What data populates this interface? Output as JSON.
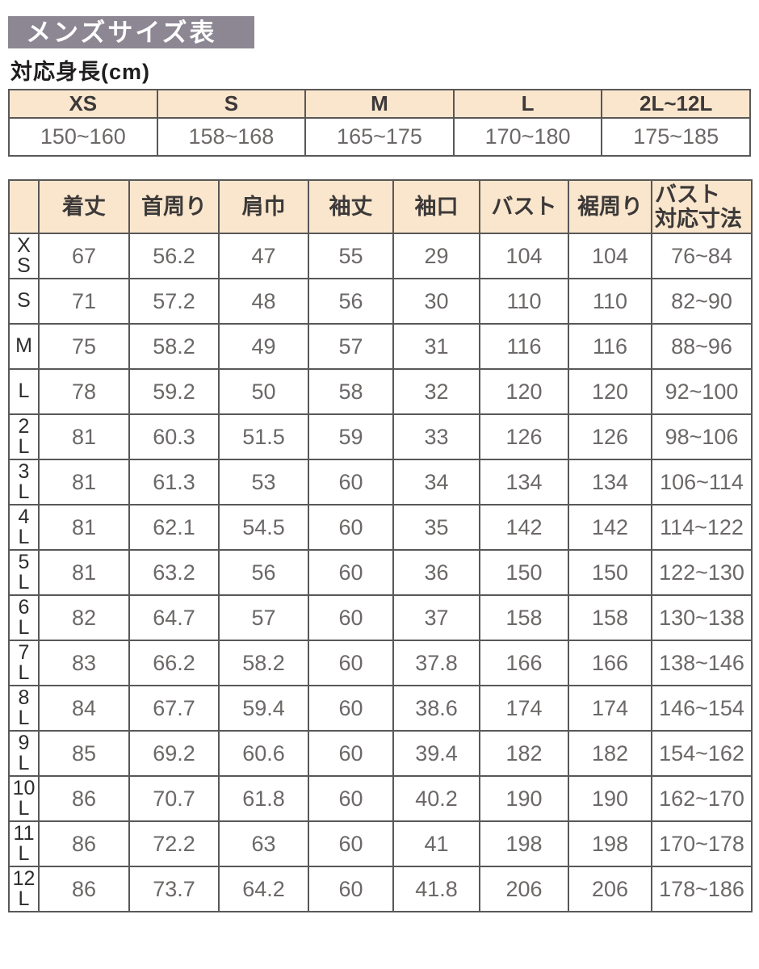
{
  "title": "メンズサイズ表",
  "subtitle": "対応身長(cm)",
  "colors": {
    "title_bar_bg": "#8c8793",
    "title_text": "#ffffff",
    "table_header_bg": "#f9e6cd",
    "table_border": "#595757",
    "header_text": "#3c3938",
    "value_text": "#6b6867"
  },
  "height_table": {
    "columns": [
      "XS",
      "S",
      "M",
      "L",
      "2L~12L"
    ],
    "values": [
      "150~160",
      "158~168",
      "165~175",
      "170~180",
      "175~185"
    ]
  },
  "size_table": {
    "corner_label": "",
    "columns": [
      "着丈",
      "首周り",
      "肩巾",
      "袖丈",
      "袖口",
      "バスト",
      "裾周り",
      "バスト\n対応寸法"
    ],
    "rows": [
      {
        "size": "X\nS",
        "values": [
          "67",
          "56.2",
          "47",
          "55",
          "29",
          "104",
          "104",
          "76~84"
        ]
      },
      {
        "size": "S",
        "values": [
          "71",
          "57.2",
          "48",
          "56",
          "30",
          "110",
          "110",
          "82~90"
        ]
      },
      {
        "size": "M",
        "values": [
          "75",
          "58.2",
          "49",
          "57",
          "31",
          "116",
          "116",
          "88~96"
        ]
      },
      {
        "size": "L",
        "values": [
          "78",
          "59.2",
          "50",
          "58",
          "32",
          "120",
          "120",
          "92~100"
        ]
      },
      {
        "size": "2\nL",
        "values": [
          "81",
          "60.3",
          "51.5",
          "59",
          "33",
          "126",
          "126",
          "98~106"
        ]
      },
      {
        "size": "3\nL",
        "values": [
          "81",
          "61.3",
          "53",
          "60",
          "34",
          "134",
          "134",
          "106~114"
        ]
      },
      {
        "size": "4\nL",
        "values": [
          "81",
          "62.1",
          "54.5",
          "60",
          "35",
          "142",
          "142",
          "114~122"
        ]
      },
      {
        "size": "5\nL",
        "values": [
          "81",
          "63.2",
          "56",
          "60",
          "36",
          "150",
          "150",
          "122~130"
        ]
      },
      {
        "size": "6\nL",
        "values": [
          "82",
          "64.7",
          "57",
          "60",
          "37",
          "158",
          "158",
          "130~138"
        ]
      },
      {
        "size": "7\nL",
        "values": [
          "83",
          "66.2",
          "58.2",
          "60",
          "37.8",
          "166",
          "166",
          "138~146"
        ]
      },
      {
        "size": "8\nL",
        "values": [
          "84",
          "67.7",
          "59.4",
          "60",
          "38.6",
          "174",
          "174",
          "146~154"
        ]
      },
      {
        "size": "9\nL",
        "values": [
          "85",
          "69.2",
          "60.6",
          "60",
          "39.4",
          "182",
          "182",
          "154~162"
        ]
      },
      {
        "size": "10\nL",
        "values": [
          "86",
          "70.7",
          "61.8",
          "60",
          "40.2",
          "190",
          "190",
          "162~170"
        ]
      },
      {
        "size": "11\nL",
        "values": [
          "86",
          "72.2",
          "63",
          "60",
          "41",
          "198",
          "198",
          "170~178"
        ]
      },
      {
        "size": "12\nL",
        "values": [
          "86",
          "73.7",
          "64.2",
          "60",
          "41.8",
          "206",
          "206",
          "178~186"
        ]
      }
    ]
  }
}
